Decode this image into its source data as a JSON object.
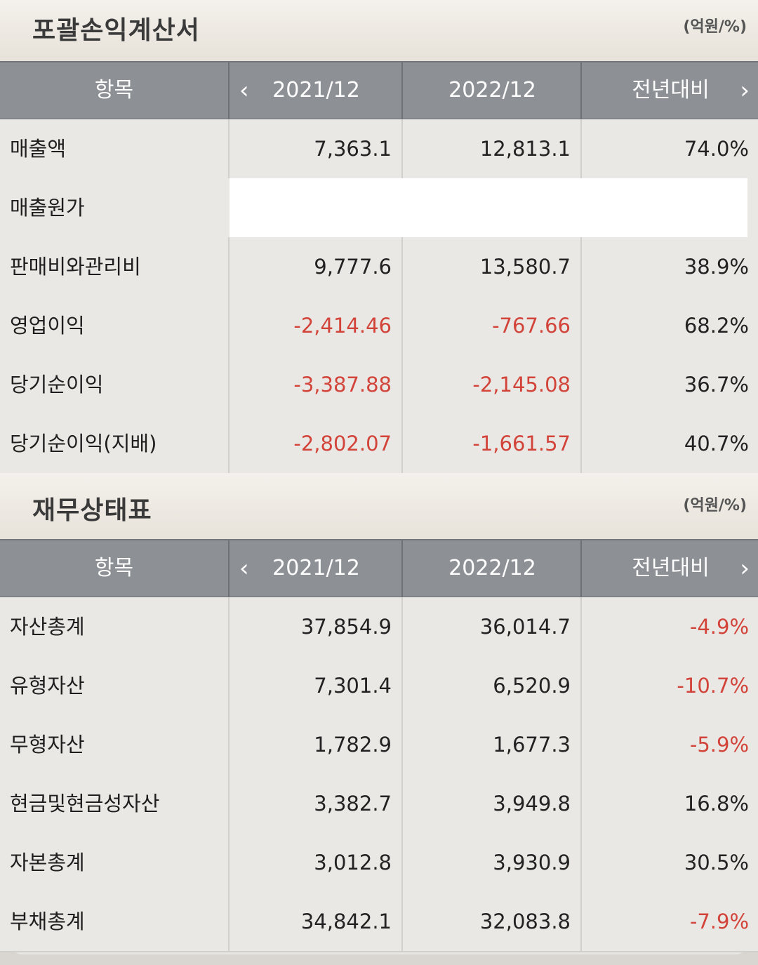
{
  "income": {
    "title": "포괄손익계산서",
    "unit": "(억원/%)",
    "headers": {
      "item": "항목",
      "y1": "2021/12",
      "y2": "2022/12",
      "yoy": "전년대비"
    },
    "rows": [
      {
        "label": "매출액",
        "y1": "7,363.1",
        "y2": "12,813.1",
        "yoy": "74.0%"
      },
      {
        "label": "매출원가",
        "y1": "",
        "y2": "",
        "yoy": ""
      },
      {
        "label": "판매비와관리비",
        "y1": "9,777.6",
        "y2": "13,580.7",
        "yoy": "38.9%"
      },
      {
        "label": "영업이익",
        "y1": "-2,414.46",
        "y2": "-767.66",
        "yoy": "68.2%"
      },
      {
        "label": "당기순이익",
        "y1": "-3,387.88",
        "y2": "-2,145.08",
        "yoy": "36.7%"
      },
      {
        "label": "당기순이익(지배)",
        "y1": "-2,802.07",
        "y2": "-1,661.57",
        "yoy": "40.7%"
      }
    ]
  },
  "balance": {
    "title": "재무상태표",
    "unit": "(억원/%)",
    "headers": {
      "item": "항목",
      "y1": "2021/12",
      "y2": "2022/12",
      "yoy": "전년대비"
    },
    "rows": [
      {
        "label": "자산총계",
        "y1": "37,854.9",
        "y2": "36,014.7",
        "yoy": "-4.9%"
      },
      {
        "label": "유형자산",
        "y1": "7,301.4",
        "y2": "6,520.9",
        "yoy": "-10.7%"
      },
      {
        "label": "무형자산",
        "y1": "1,782.9",
        "y2": "1,677.3",
        "yoy": "-5.9%"
      },
      {
        "label": "현금및현금성자산",
        "y1": "3,382.7",
        "y2": "3,949.8",
        "yoy": "16.8%"
      },
      {
        "label": "자본총계",
        "y1": "3,012.8",
        "y2": "3,930.9",
        "yoy": "30.5%"
      },
      {
        "label": "부채총계",
        "y1": "34,842.1",
        "y2": "32,083.8",
        "yoy": "-7.9%"
      }
    ]
  },
  "colors": {
    "negative": "#d2433a",
    "header_bg": "#8d9095",
    "row_bg": "#eae8e4"
  }
}
